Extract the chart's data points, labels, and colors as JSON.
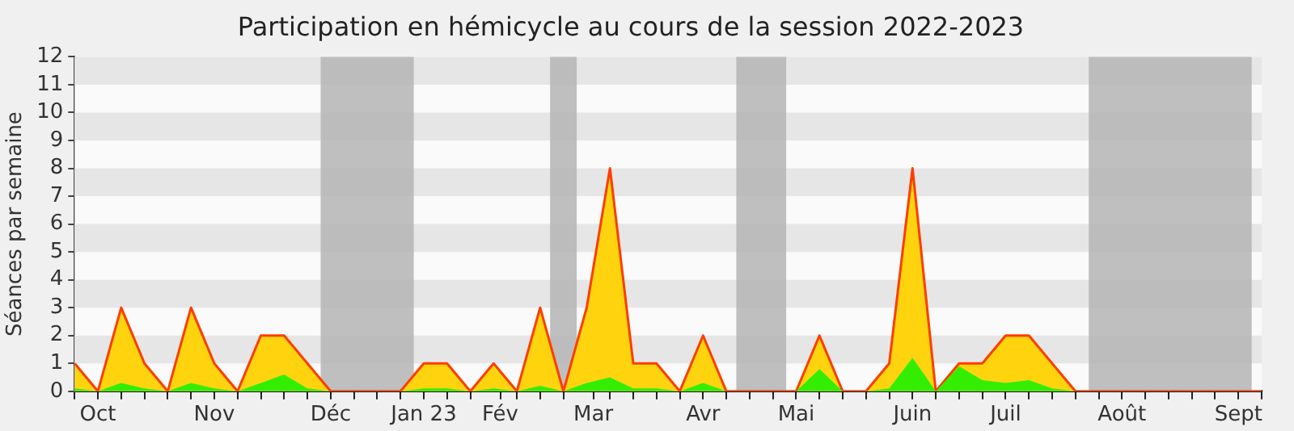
{
  "chart_data": {
    "type": "area",
    "title": "Participation en hémicycle au cours de la session 2022-2023",
    "ylabel": "Séances par semaine",
    "x": [
      "2022-09-26",
      "2022-10-03",
      "2022-10-10",
      "2022-10-17",
      "2022-10-24",
      "2022-10-31",
      "2022-11-07",
      "2022-11-14",
      "2022-11-21",
      "2022-11-28",
      "2022-12-05",
      "2022-12-12",
      "2022-12-19",
      "2022-12-26",
      "2023-01-02",
      "2023-01-09",
      "2023-01-16",
      "2023-01-23",
      "2023-01-30",
      "2023-02-06",
      "2023-02-13",
      "2023-02-20",
      "2023-02-27",
      "2023-03-06",
      "2023-03-13",
      "2023-03-20",
      "2023-03-27",
      "2023-04-03",
      "2023-04-10",
      "2023-04-17",
      "2023-04-24",
      "2023-05-01",
      "2023-05-08",
      "2023-05-15",
      "2023-05-22",
      "2023-05-29",
      "2023-06-05",
      "2023-06-12",
      "2023-06-19",
      "2023-06-26",
      "2023-07-03",
      "2023-07-10",
      "2023-07-17",
      "2023-07-24",
      "2023-07-31",
      "2023-08-07",
      "2023-08-14",
      "2023-08-21",
      "2023-08-28",
      "2023-09-04",
      "2023-09-11",
      "2023-09-18"
    ],
    "series": [
      {
        "color": "#ffd40f",
        "values": [
          1,
          0,
          3,
          1,
          0,
          3,
          1,
          0,
          2,
          2,
          1,
          0,
          0,
          0,
          0,
          1,
          1,
          0,
          1,
          0,
          3,
          0,
          3,
          8,
          1,
          1,
          0,
          2,
          0,
          0,
          0,
          0,
          2,
          0,
          0,
          1,
          8,
          0,
          1,
          1,
          2,
          2,
          1,
          0,
          0,
          0,
          0,
          0,
          0,
          0,
          0,
          0
        ]
      },
      {
        "color": "#33ee00",
        "values": [
          0.1,
          0,
          0.3,
          0.1,
          0,
          0.3,
          0.1,
          0,
          0.3,
          0.6,
          0.1,
          0,
          0,
          0,
          0,
          0.1,
          0.1,
          0,
          0.1,
          0,
          0.2,
          0,
          0.3,
          0.5,
          0.1,
          0.1,
          0,
          0.3,
          0,
          0,
          0,
          0,
          0.8,
          0,
          0,
          0.1,
          1.2,
          0,
          0.9,
          0.4,
          0.3,
          0.4,
          0.1,
          0,
          0,
          0,
          0,
          0,
          0,
          0,
          0,
          0
        ]
      }
    ],
    "xlim": [
      "2022-09-26",
      "2023-09-18"
    ],
    "xticks": [
      {
        "value": "2022-09-26",
        "label": null
      },
      {
        "value": "2022-10-03",
        "label": "Oct"
      },
      {
        "value": "2022-10-10",
        "label": null
      },
      {
        "value": "2022-10-17",
        "label": null
      },
      {
        "value": "2022-10-24",
        "label": null
      },
      {
        "value": "2022-10-31",
        "label": null
      },
      {
        "value": "2022-11-07",
        "label": "Nov"
      },
      {
        "value": "2022-11-14",
        "label": null
      },
      {
        "value": "2022-11-21",
        "label": null
      },
      {
        "value": "2022-11-28",
        "label": null
      },
      {
        "value": "2022-12-05",
        "label": null
      },
      {
        "value": "2022-12-12",
        "label": "Déc"
      },
      {
        "value": "2022-12-19",
        "label": null
      },
      {
        "value": "2022-12-26",
        "label": null
      },
      {
        "value": "2023-01-02",
        "label": null
      },
      {
        "value": "2023-01-09",
        "label": "Jan 23"
      },
      {
        "value": "2023-01-16",
        "label": null
      },
      {
        "value": "2023-01-23",
        "label": null
      },
      {
        "value": "2023-02-01",
        "label": "Fév"
      },
      {
        "value": "2023-02-06",
        "label": null
      },
      {
        "value": "2023-02-13",
        "label": null
      },
      {
        "value": "2023-02-20",
        "label": null
      },
      {
        "value": "2023-03-01",
        "label": "Mar"
      },
      {
        "value": "2023-03-06",
        "label": null
      },
      {
        "value": "2023-03-13",
        "label": null
      },
      {
        "value": "2023-03-20",
        "label": null
      },
      {
        "value": "2023-03-27",
        "label": null
      },
      {
        "value": "2023-04-03",
        "label": "Avr"
      },
      {
        "value": "2023-04-10",
        "label": null
      },
      {
        "value": "2023-04-17",
        "label": null
      },
      {
        "value": "2023-04-24",
        "label": null
      },
      {
        "value": "2023-05-01",
        "label": "Mai"
      },
      {
        "value": "2023-05-08",
        "label": null
      },
      {
        "value": "2023-05-15",
        "label": null
      },
      {
        "value": "2023-05-22",
        "label": null
      },
      {
        "value": "2023-05-29",
        "label": null
      },
      {
        "value": "2023-06-05",
        "label": "Juin"
      },
      {
        "value": "2023-06-12",
        "label": null
      },
      {
        "value": "2023-06-19",
        "label": null
      },
      {
        "value": "2023-06-26",
        "label": null
      },
      {
        "value": "2023-07-03",
        "label": "Juil"
      },
      {
        "value": "2023-07-10",
        "label": null
      },
      {
        "value": "2023-07-17",
        "label": null
      },
      {
        "value": "2023-07-24",
        "label": null
      },
      {
        "value": "2023-07-31",
        "label": null
      },
      {
        "value": "2023-08-07",
        "label": "Août"
      },
      {
        "value": "2023-08-14",
        "label": null
      },
      {
        "value": "2023-08-21",
        "label": null
      },
      {
        "value": "2023-08-28",
        "label": null
      },
      {
        "value": "2023-09-04",
        "label": null
      },
      {
        "value": "2023-09-11",
        "label": "Sept"
      },
      {
        "value": "2023-09-18",
        "label": null
      }
    ],
    "ylim": [
      0,
      12
    ],
    "yticks": [
      0,
      1,
      2,
      3,
      4,
      5,
      6,
      7,
      8,
      9,
      10,
      11,
      12
    ],
    "bands": [
      {
        "axis": "x",
        "from": "2022-12-09",
        "to": "2023-01-06",
        "color": "#b4b4b4"
      },
      {
        "axis": "x",
        "from": "2023-02-16",
        "to": "2023-02-24",
        "color": "#b4b4b4"
      },
      {
        "axis": "x",
        "from": "2023-04-13",
        "to": "2023-04-28",
        "color": "#b4b4b4"
      },
      {
        "axis": "x",
        "from": "2023-07-28",
        "to": "2023-09-15",
        "color": "#b4b4b4"
      }
    ]
  }
}
